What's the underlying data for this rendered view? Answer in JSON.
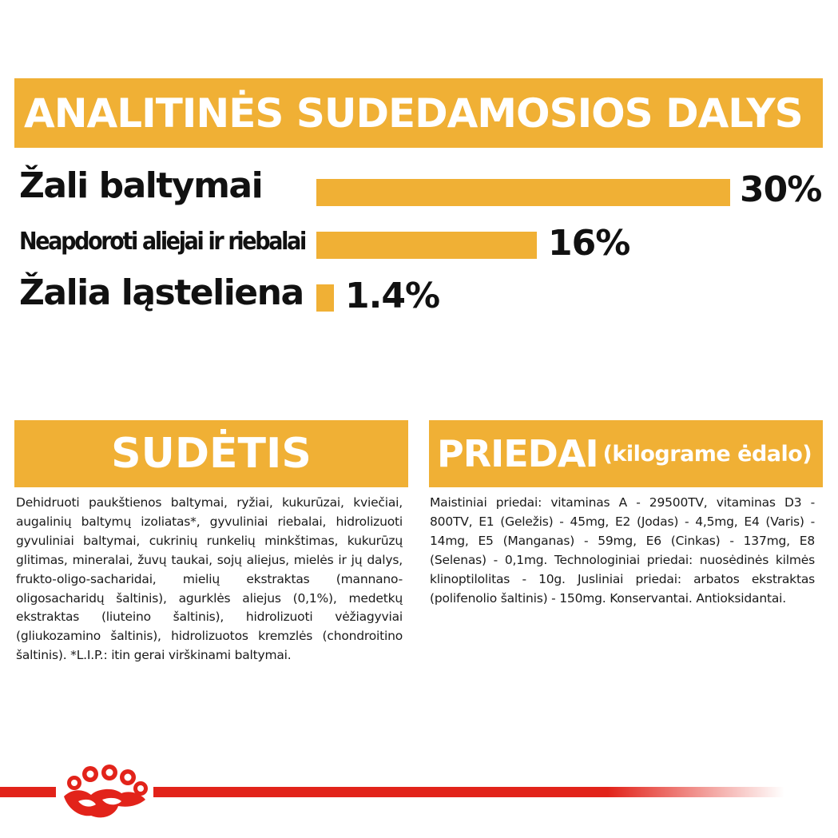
{
  "analysis": {
    "title": "ANALITINĖS SUDEDAMOSIOS DALYS",
    "rows": [
      {
        "label": "Žali baltymai",
        "value": "30%",
        "fraction": 1.0
      },
      {
        "label": "Neapdoroti aliejai ir riebalai",
        "value": "16%",
        "fraction": 0.533
      },
      {
        "label": "Žalia ląsteliena",
        "value": "1.4%",
        "fraction": 0.047
      }
    ],
    "bar_color": "#f0b035"
  },
  "sudetis": {
    "title": "SUDĖTIS",
    "text": "Dehidruoti paukštienos baltymai, ryžiai, kukurūzai, kviečiai, augalinių baltymų izoliatas*, gyvuliniai riebalai, hidrolizuoti gyvuliniai baltymai, cukrinių runkelių minkštimas, kukurūzų glitimas, mineralai, žuvų taukai, sojų aliejus, mielės ir jų dalys, frukto-oligo-sacharidai, mielių ekstraktas (mannano-oligosacharidų šaltinis), agurklės aliejus (0,1%), medetkų ekstraktas (liuteino šaltinis), hidrolizuoti vėžiagyviai (gliukozamino šaltinis), hidrolizuotos kremzlės (chondroitino šaltinis). *L.I.P.: itin gerai virškinami baltymai."
  },
  "priedai": {
    "title": "PRIEDAI",
    "subtitle": "(kilograme ėdalo)",
    "text": "Maistiniai priedai: vitaminas A - 29500TV, vitaminas D3 - 800TV, E1 (Geležis) - 45mg, E2 (Jodas) - 4,5mg, E4 (Varis) - 14mg, E5 (Manganas) - 59mg, E6 (Cinkas) - 137mg, E8 (Selenas) - 0,1mg. Technologiniai priedai: nuosėdinės kilmės klinoptilolitas - 10g. Jusliniai priedai: arbatos ekstraktas (polifenolio šaltinis) - 150mg. Konservantai. Antioksidantai."
  },
  "footer": {
    "logo_icon": "royal-canin-crown-icon",
    "brand_color": "#e2231a"
  }
}
